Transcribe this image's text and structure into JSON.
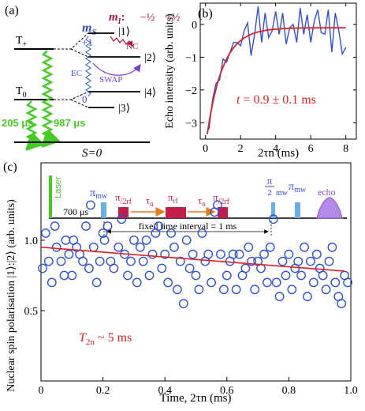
{
  "colors": {
    "blue": "#2f4fd8",
    "red": "#e02020",
    "green": "#44cc22",
    "darkred": "#b0103a",
    "purple": "#8a4dd6",
    "pulse_blue": "#6aaee8",
    "pulse_red": "#c0204a"
  },
  "panel_a": {
    "label": "(a)",
    "ms_label": "m",
    "ms_sub": "S",
    "mI_label": "m",
    "mI_sub": "I",
    "mI_colon": ":",
    "mI_minus": "−½",
    "mI_plus": "+½",
    "t_plus": "T",
    "t_plus_sub": "+",
    "t_zero": "T",
    "t_zero_sub": "0",
    "plus_one": "+1",
    "zero": "0",
    "state_1": "|1⟩",
    "state_2": "|2⟩",
    "state_3": "|3⟩",
    "state_4": "|4⟩",
    "nc": "NC",
    "swap": "SWAP",
    "ec": "EC",
    "lifetime_1": "205 μs",
    "lifetime_2": "987 μs",
    "singlet": "S=0"
  },
  "panel_b": {
    "label": "(b)",
    "annotation_t": "t",
    "annotation_rest": " = 0.9 ± 0.1 ms"
  },
  "panel_c": {
    "label": "(c)",
    "laser": "Laser",
    "laser_time": "700 μs",
    "pi_mw": "π",
    "pi_mw_sub": "mw",
    "pi2rf_pi": "π",
    "pi2rf_den": "/2rf",
    "tau": "τ",
    "tau_sub": "n",
    "pi_rf": "π",
    "pi_rf_sub": "rf",
    "pi2mw_num": "π",
    "pi2mw_den": "2",
    "pi2mw_sub": "mw",
    "echo": "echo",
    "fixed_interval": "fixed time interval = 1 ms",
    "annotation_T": "T",
    "annotation_sub": "2n",
    "annotation_rest": " ~ 5 ms"
  },
  "chart_data": [
    {
      "panel": "b",
      "type": "line",
      "xlabel": "2τn (ms)",
      "ylabel": "Echo intensity (arb. units)",
      "xlim": [
        -0.3,
        8.6
      ],
      "ylim": [
        -3.5,
        0.65
      ],
      "xticks": [
        0,
        2,
        4,
        6,
        8
      ],
      "yticks": [
        -3,
        -2,
        -1,
        0
      ],
      "grid": false,
      "series": [
        {
          "kind": "data",
          "color": "#2f4fd8",
          "x": [
            0.2,
            0.4,
            0.6,
            0.8,
            1.0,
            1.2,
            1.4,
            1.6,
            1.8,
            2.0,
            2.2,
            2.4,
            2.6,
            2.8,
            3.0,
            3.2,
            3.4,
            3.6,
            3.8,
            4.0,
            4.2,
            4.4,
            4.6,
            4.8,
            5.0,
            5.2,
            5.4,
            5.6,
            5.8,
            6.0,
            6.2,
            6.4,
            6.6,
            6.8,
            7.0,
            7.2,
            7.4,
            7.6,
            7.8,
            8.0
          ],
          "y": [
            -3.2,
            -2.3,
            -1.8,
            -1.7,
            -1.05,
            -1.15,
            -0.85,
            -0.55,
            -0.55,
            -0.65,
            -0.2,
            0.05,
            -0.95,
            -0.3,
            0.55,
            -0.55,
            0.35,
            -0.4,
            -0.2,
            0.4,
            -0.3,
            0.35,
            -0.6,
            -0.1,
            0.0,
            -0.55,
            0.5,
            -0.3,
            0.3,
            -0.55,
            0.1,
            0.45,
            -0.25,
            -0.3,
            0.45,
            -0.85,
            0.35,
            -0.2,
            -0.9,
            -0.7
          ]
        },
        {
          "kind": "fit",
          "color": "#e02020",
          "function": "exp",
          "amplitude": -3.35,
          "offset": -0.1,
          "t0": 0.1,
          "tau": 0.9,
          "x_range": [
            0.1,
            8.0
          ]
        }
      ]
    },
    {
      "panel": "c",
      "type": "scatter",
      "xlabel": "Time, 2τn (ms)",
      "ylabel": "Nuclear spin polarisation |1⟩:|2⟩ (arb. units)",
      "xlim": [
        0,
        1.0
      ],
      "ylim": [
        0,
        1.55
      ],
      "xticks": [
        0,
        0.2,
        0.4,
        0.6,
        0.8,
        1.0
      ],
      "ytick_labels": [
        {
          "value": 0.5,
          "label": "0.5"
        },
        {
          "value": 1.0,
          "label": "1.0"
        }
      ],
      "grid": false,
      "series": [
        {
          "kind": "data",
          "color": "#2f4fd8",
          "x": [
            0.005,
            0.015,
            0.025,
            0.035,
            0.045,
            0.05,
            0.065,
            0.075,
            0.08,
            0.09,
            0.1,
            0.105,
            0.115,
            0.125,
            0.135,
            0.145,
            0.155,
            0.16,
            0.17,
            0.18,
            0.19,
            0.2,
            0.205,
            0.215,
            0.225,
            0.235,
            0.25,
            0.26,
            0.27,
            0.28,
            0.29,
            0.3,
            0.31,
            0.32,
            0.33,
            0.34,
            0.35,
            0.36,
            0.37,
            0.38,
            0.39,
            0.4,
            0.41,
            0.42,
            0.43,
            0.44,
            0.45,
            0.46,
            0.47,
            0.48,
            0.49,
            0.5,
            0.51,
            0.52,
            0.53,
            0.54,
            0.55,
            0.56,
            0.57,
            0.58,
            0.59,
            0.6,
            0.61,
            0.62,
            0.63,
            0.64,
            0.65,
            0.66,
            0.67,
            0.68,
            0.69,
            0.7,
            0.71,
            0.72,
            0.73,
            0.74,
            0.75,
            0.76,
            0.77,
            0.78,
            0.79,
            0.8,
            0.81,
            0.82,
            0.83,
            0.84,
            0.85,
            0.86,
            0.87,
            0.88,
            0.89,
            0.9,
            0.91,
            0.92,
            0.93,
            0.94,
            0.95,
            0.96,
            0.97,
            0.98,
            0.99
          ],
          "y": [
            0.8,
            1.05,
            0.85,
            0.7,
            1.1,
            0.95,
            0.85,
            0.75,
            1.0,
            0.9,
            0.75,
            1.0,
            0.95,
            0.9,
            0.85,
            1.1,
            0.8,
            1.25,
            0.95,
            0.7,
            0.85,
            1.05,
            1.0,
            1.1,
            0.85,
            0.8,
            0.95,
            1.15,
            0.9,
            0.75,
            0.85,
            1.0,
            0.7,
            0.95,
            0.85,
            1.0,
            0.75,
            0.9,
            1.05,
            1.1,
            0.8,
            0.9,
            0.7,
            1.05,
            0.95,
            0.65,
            0.85,
            0.55,
            1.0,
            0.8,
            0.9,
            0.75,
            0.65,
            1.05,
            0.85,
            0.9,
            0.7,
            1.2,
            1.25,
            0.9,
            0.65,
            0.75,
            0.85,
            0.9,
            0.65,
            0.9,
            0.75,
            0.8,
            0.95,
            0.85,
            0.65,
            0.85,
            0.8,
            0.9,
            0.7,
            0.95,
            1.15,
            0.7,
            0.6,
            0.85,
            0.75,
            0.9,
            0.65,
            0.8,
            0.85,
            0.75,
            0.95,
            0.6,
            0.85,
            0.7,
            0.9,
            0.8,
            0.75,
            0.65,
            0.85,
            0.95,
            0.7,
            0.6,
            0.55,
            0.75,
            0.7
          ]
        },
        {
          "kind": "fit",
          "color": "#e02020",
          "function": "linear",
          "x_range": [
            0,
            0.98
          ],
          "y_at_start": 0.95,
          "y_at_end": 0.78
        }
      ]
    }
  ]
}
